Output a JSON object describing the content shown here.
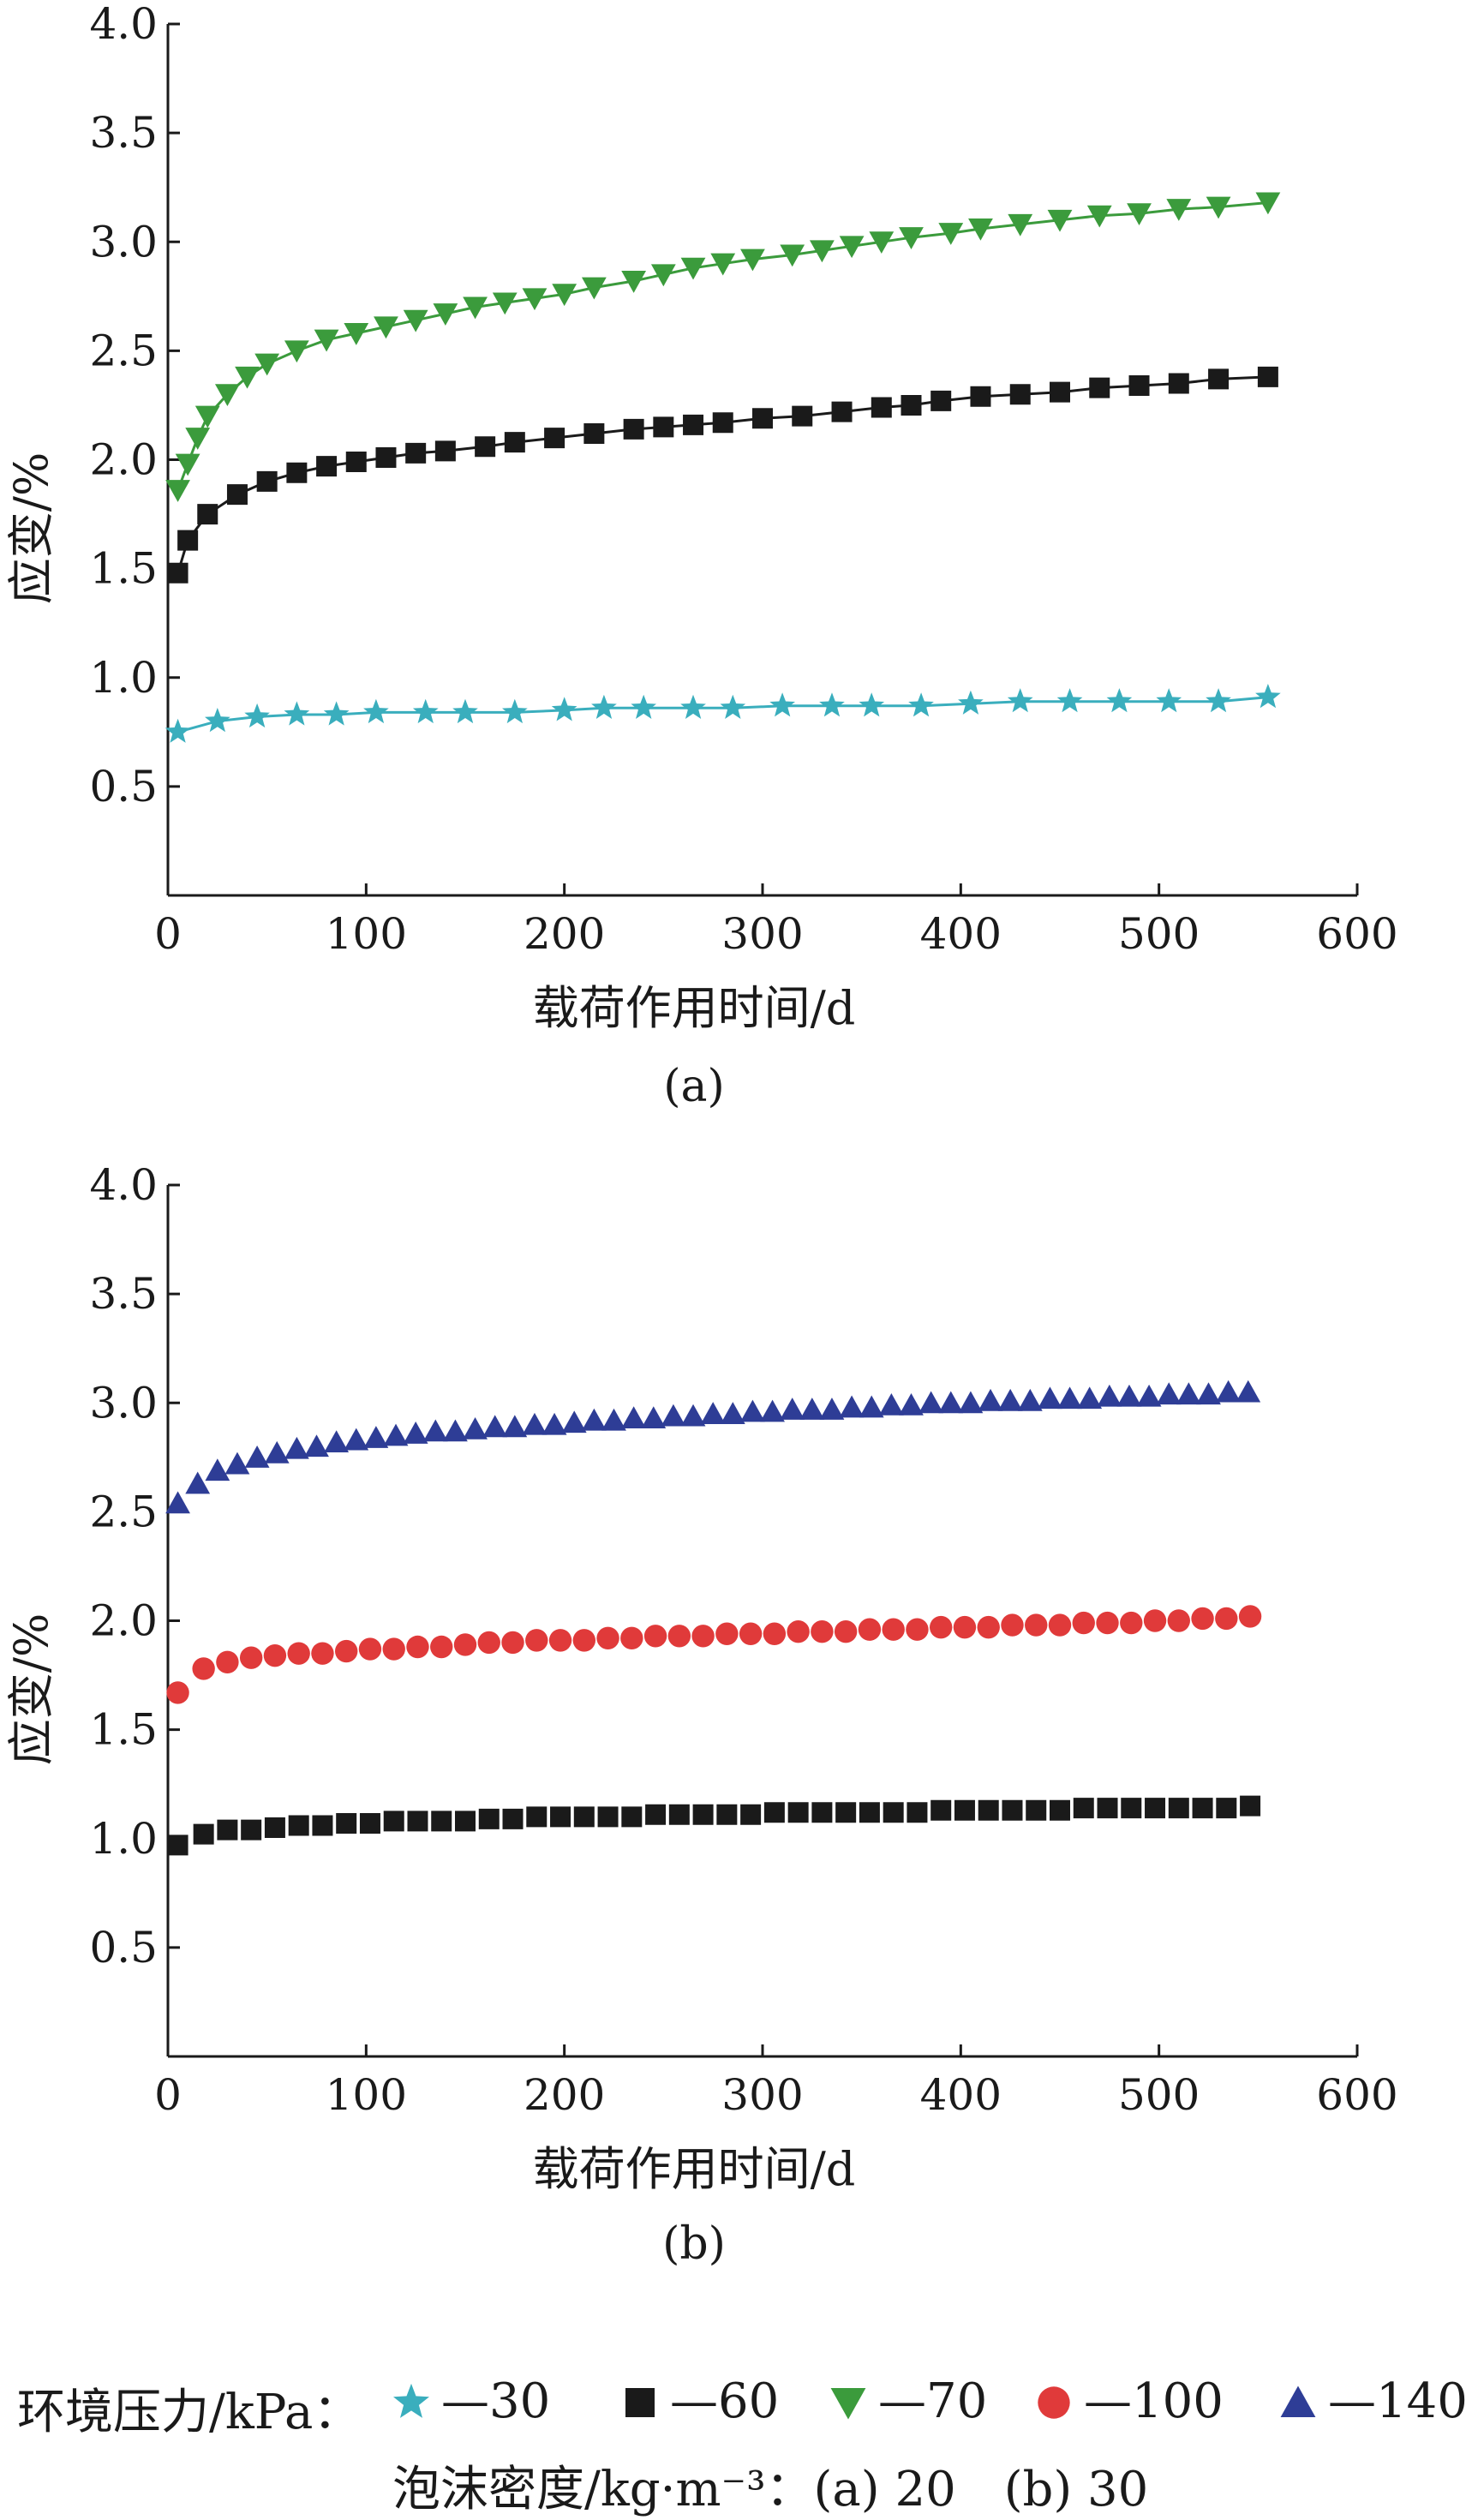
{
  "chart_data": [
    {
      "panel": "(a)",
      "type": "scatter",
      "xlabel": "载荷作用时间/d",
      "ylabel": "应变/%",
      "xlim": [
        0,
        600
      ],
      "ylim": [
        0,
        4.0
      ],
      "xticks": [
        "0",
        "100",
        "200",
        "300",
        "400",
        "500",
        "600"
      ],
      "yticks": [
        "0.5",
        "1.0",
        "1.5",
        "2.0",
        "2.5",
        "3.0",
        "3.5",
        "4.0"
      ],
      "fit_lines": true,
      "series": [
        {
          "name": "30",
          "marker": "star",
          "color": "#3aaebd",
          "x": [
            5,
            25,
            45,
            65,
            85,
            105,
            130,
            150,
            175,
            200,
            220,
            240,
            265,
            285,
            310,
            335,
            355,
            380,
            405,
            430,
            455,
            480,
            505,
            530,
            555
          ],
          "y": [
            0.75,
            0.8,
            0.82,
            0.83,
            0.83,
            0.84,
            0.84,
            0.84,
            0.84,
            0.85,
            0.86,
            0.86,
            0.86,
            0.86,
            0.87,
            0.87,
            0.87,
            0.87,
            0.88,
            0.89,
            0.89,
            0.89,
            0.89,
            0.89,
            0.91
          ]
        },
        {
          "name": "60",
          "marker": "square",
          "color": "#1a1a1a",
          "x": [
            5,
            10,
            20,
            35,
            50,
            65,
            80,
            95,
            110,
            125,
            140,
            160,
            175,
            195,
            215,
            235,
            250,
            265,
            280,
            300,
            320,
            340,
            360,
            375,
            390,
            410,
            430,
            450,
            470,
            490,
            510,
            530,
            555
          ],
          "y": [
            1.48,
            1.63,
            1.75,
            1.84,
            1.9,
            1.94,
            1.97,
            1.99,
            2.01,
            2.03,
            2.04,
            2.06,
            2.08,
            2.1,
            2.12,
            2.14,
            2.15,
            2.16,
            2.17,
            2.19,
            2.2,
            2.22,
            2.24,
            2.25,
            2.27,
            2.29,
            2.3,
            2.31,
            2.33,
            2.34,
            2.35,
            2.37,
            2.38
          ]
        },
        {
          "name": "70",
          "marker": "tri-down",
          "color": "#3b9b3c",
          "x": [
            5,
            10,
            15,
            20,
            30,
            40,
            50,
            65,
            80,
            95,
            110,
            125,
            140,
            155,
            170,
            185,
            200,
            215,
            235,
            250,
            265,
            280,
            295,
            315,
            330,
            345,
            360,
            375,
            395,
            410,
            430,
            450,
            470,
            490,
            510,
            530,
            555
          ],
          "y": [
            1.86,
            1.98,
            2.1,
            2.2,
            2.3,
            2.38,
            2.44,
            2.5,
            2.55,
            2.58,
            2.61,
            2.64,
            2.67,
            2.7,
            2.72,
            2.74,
            2.76,
            2.79,
            2.82,
            2.85,
            2.88,
            2.9,
            2.92,
            2.94,
            2.96,
            2.98,
            3.0,
            3.02,
            3.04,
            3.06,
            3.08,
            3.1,
            3.12,
            3.13,
            3.15,
            3.16,
            3.18
          ]
        }
      ]
    },
    {
      "panel": "(b)",
      "type": "scatter",
      "xlabel": "载荷作用时间/d",
      "ylabel": "应变/%",
      "xlim": [
        0,
        600
      ],
      "ylim": [
        0,
        4.0
      ],
      "xticks": [
        "0",
        "100",
        "200",
        "300",
        "400",
        "500",
        "600"
      ],
      "yticks": [
        "0.5",
        "1.0",
        "1.5",
        "2.0",
        "2.5",
        "3.0",
        "3.5",
        "4.0"
      ],
      "fit_lines": false,
      "series": [
        {
          "name": "60",
          "marker": "square",
          "color": "#1a1a1a",
          "x": [
            5,
            18,
            30,
            42,
            54,
            66,
            78,
            90,
            102,
            114,
            126,
            138,
            150,
            162,
            174,
            186,
            198,
            210,
            222,
            234,
            246,
            258,
            270,
            282,
            294,
            306,
            318,
            330,
            342,
            354,
            366,
            378,
            390,
            402,
            414,
            426,
            438,
            450,
            462,
            474,
            486,
            498,
            510,
            522,
            534,
            546
          ],
          "y": [
            0.97,
            1.02,
            1.04,
            1.04,
            1.05,
            1.06,
            1.06,
            1.07,
            1.07,
            1.08,
            1.08,
            1.08,
            1.08,
            1.09,
            1.09,
            1.1,
            1.1,
            1.1,
            1.1,
            1.1,
            1.11,
            1.11,
            1.11,
            1.11,
            1.11,
            1.12,
            1.12,
            1.12,
            1.12,
            1.12,
            1.12,
            1.12,
            1.13,
            1.13,
            1.13,
            1.13,
            1.13,
            1.13,
            1.14,
            1.14,
            1.14,
            1.14,
            1.14,
            1.14,
            1.14,
            1.15
          ]
        },
        {
          "name": "100",
          "marker": "circle",
          "color": "#e03a3a",
          "x": [
            5,
            18,
            30,
            42,
            54,
            66,
            78,
            90,
            102,
            114,
            126,
            138,
            150,
            162,
            174,
            186,
            198,
            210,
            222,
            234,
            246,
            258,
            270,
            282,
            294,
            306,
            318,
            330,
            342,
            354,
            366,
            378,
            390,
            402,
            414,
            426,
            438,
            450,
            462,
            474,
            486,
            498,
            510,
            522,
            534,
            546
          ],
          "y": [
            1.67,
            1.78,
            1.81,
            1.83,
            1.84,
            1.85,
            1.85,
            1.86,
            1.87,
            1.87,
            1.88,
            1.88,
            1.89,
            1.9,
            1.9,
            1.91,
            1.91,
            1.91,
            1.92,
            1.92,
            1.93,
            1.93,
            1.93,
            1.94,
            1.94,
            1.94,
            1.95,
            1.95,
            1.95,
            1.96,
            1.96,
            1.96,
            1.97,
            1.97,
            1.97,
            1.98,
            1.98,
            1.98,
            1.99,
            1.99,
            1.99,
            2.0,
            2.0,
            2.01,
            2.01,
            2.02
          ]
        },
        {
          "name": "140",
          "marker": "tri-up",
          "color": "#2e3d96",
          "x": [
            5,
            15,
            25,
            35,
            45,
            55,
            65,
            75,
            85,
            95,
            105,
            115,
            125,
            135,
            145,
            155,
            165,
            175,
            185,
            195,
            205,
            215,
            225,
            235,
            245,
            255,
            265,
            275,
            285,
            295,
            305,
            315,
            325,
            335,
            345,
            355,
            365,
            375,
            385,
            395,
            405,
            415,
            425,
            435,
            445,
            455,
            465,
            475,
            485,
            495,
            505,
            515,
            525,
            535,
            545
          ],
          "y": [
            2.54,
            2.63,
            2.69,
            2.72,
            2.75,
            2.77,
            2.79,
            2.8,
            2.82,
            2.83,
            2.84,
            2.85,
            2.86,
            2.87,
            2.87,
            2.88,
            2.89,
            2.89,
            2.9,
            2.9,
            2.91,
            2.92,
            2.92,
            2.93,
            2.93,
            2.94,
            2.94,
            2.95,
            2.95,
            2.96,
            2.96,
            2.97,
            2.97,
            2.97,
            2.98,
            2.98,
            2.99,
            2.99,
            3.0,
            3.0,
            3.0,
            3.01,
            3.01,
            3.01,
            3.02,
            3.02,
            3.02,
            3.03,
            3.03,
            3.03,
            3.04,
            3.04,
            3.04,
            3.05,
            3.05
          ]
        }
      ]
    }
  ],
  "legend": {
    "label": "环境压力/kPa：",
    "items": [
      {
        "marker": "star",
        "color": "#3aaebd",
        "text": "—30"
      },
      {
        "marker": "square",
        "color": "#1a1a1a",
        "text": "—60"
      },
      {
        "marker": "tri-down",
        "color": "#3b9b3c",
        "text": "—70"
      },
      {
        "marker": "circle",
        "color": "#e03a3a",
        "text": "—100"
      },
      {
        "marker": "tri-up",
        "color": "#2e3d96",
        "text": "—140"
      }
    ],
    "foam_note": "泡沫密度/kg·m⁻³：(a) 20　(b) 30"
  }
}
